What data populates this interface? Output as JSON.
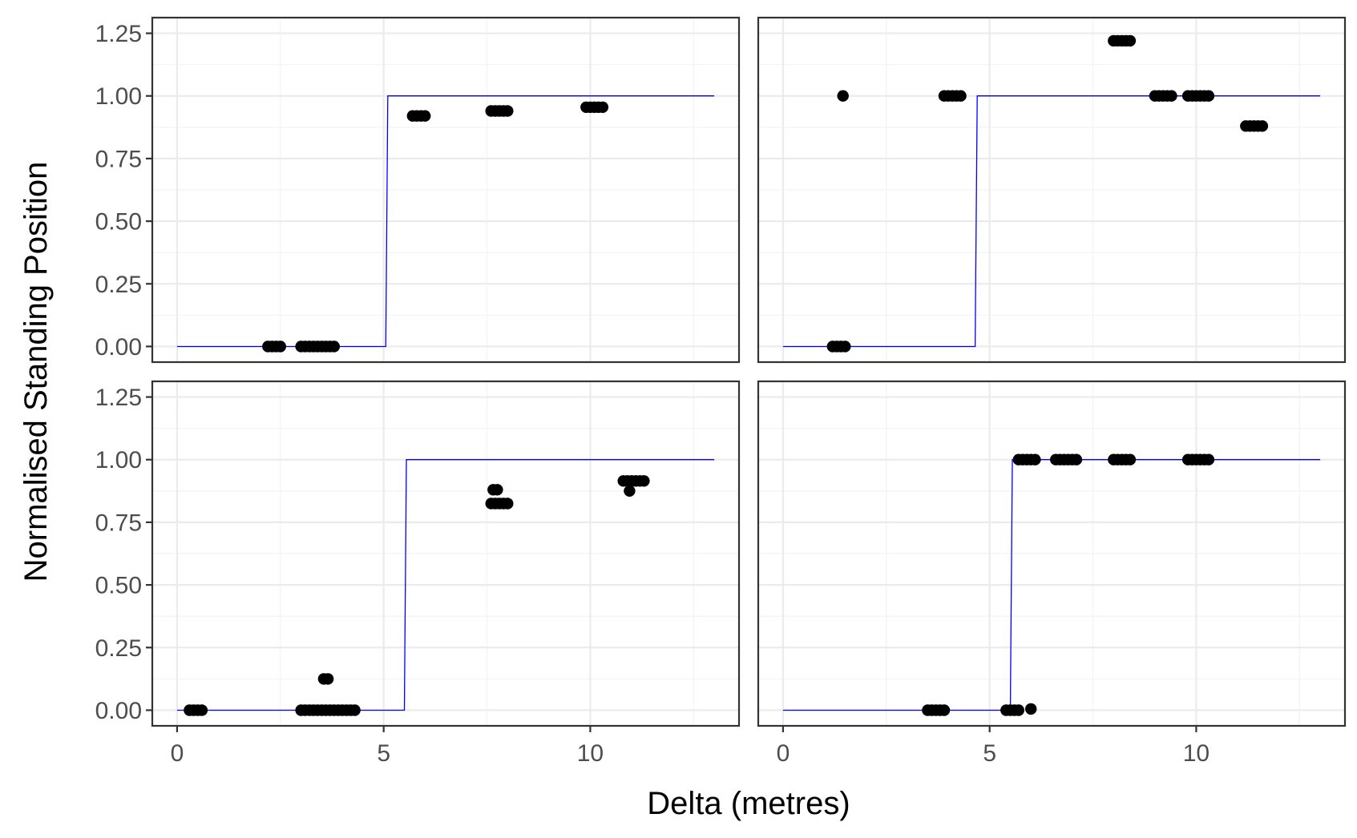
{
  "chart_data": {
    "type": "scatter",
    "layout": "2x2 facet grid, shared axes",
    "xlabel": "Delta (metres)",
    "ylabel": "Normalised Standing Position",
    "xlim": [
      -0.6,
      13.6
    ],
    "ylim": [
      -0.0625,
      1.3125
    ],
    "x_ticks": [
      {
        "value": 0,
        "label": "0"
      },
      {
        "value": 5,
        "label": "5"
      },
      {
        "value": 10,
        "label": "10"
      }
    ],
    "y_ticks": [
      {
        "value": 0,
        "label": "0.00"
      },
      {
        "value": 0.25,
        "label": "0.25"
      },
      {
        "value": 0.5,
        "label": "0.50"
      },
      {
        "value": 0.75,
        "label": "0.75"
      },
      {
        "value": 1.0,
        "label": "1.00"
      },
      {
        "value": 1.25,
        "label": "1.25"
      }
    ],
    "x_minor_ticks": [
      2.5,
      7.5,
      12.5
    ],
    "y_minor_ticks": [
      0.125,
      0.375,
      0.625,
      0.875,
      1.125
    ],
    "grid": true,
    "legend": "none",
    "colors": {
      "points": "#000000",
      "step_line": "#0000ff",
      "panel_border": "#333333",
      "grid_major": "#ebebeb",
      "grid_minor": "#f2f2f2",
      "tick_label": "#4d4d4d"
    },
    "panels": [
      {
        "id": "top-left",
        "step": {
          "x": [
            0,
            5.05,
            5.1,
            13
          ],
          "y": [
            0,
            0,
            1,
            1
          ]
        },
        "points": [
          {
            "x": 2.2,
            "y": 0
          },
          {
            "x": 2.3,
            "y": 0
          },
          {
            "x": 2.4,
            "y": 0
          },
          {
            "x": 2.5,
            "y": 0
          },
          {
            "x": 3.0,
            "y": 0
          },
          {
            "x": 3.1,
            "y": 0
          },
          {
            "x": 3.2,
            "y": 0
          },
          {
            "x": 3.3,
            "y": 0
          },
          {
            "x": 3.4,
            "y": 0
          },
          {
            "x": 3.5,
            "y": 0
          },
          {
            "x": 3.6,
            "y": 0
          },
          {
            "x": 3.7,
            "y": 0
          },
          {
            "x": 3.8,
            "y": 0
          },
          {
            "x": 5.7,
            "y": 0.92
          },
          {
            "x": 5.8,
            "y": 0.92
          },
          {
            "x": 5.9,
            "y": 0.92
          },
          {
            "x": 6.0,
            "y": 0.92
          },
          {
            "x": 7.6,
            "y": 0.94
          },
          {
            "x": 7.7,
            "y": 0.94
          },
          {
            "x": 7.8,
            "y": 0.94
          },
          {
            "x": 7.9,
            "y": 0.94
          },
          {
            "x": 8.0,
            "y": 0.94
          },
          {
            "x": 9.9,
            "y": 0.955
          },
          {
            "x": 10.0,
            "y": 0.955
          },
          {
            "x": 10.1,
            "y": 0.955
          },
          {
            "x": 10.2,
            "y": 0.955
          },
          {
            "x": 10.3,
            "y": 0.955
          }
        ]
      },
      {
        "id": "top-right",
        "step": {
          "x": [
            0,
            4.65,
            4.7,
            13
          ],
          "y": [
            0,
            0,
            1,
            1
          ]
        },
        "points": [
          {
            "x": 1.2,
            "y": 0
          },
          {
            "x": 1.3,
            "y": 0
          },
          {
            "x": 1.4,
            "y": 0
          },
          {
            "x": 1.5,
            "y": 0
          },
          {
            "x": 1.45,
            "y": 1.0
          },
          {
            "x": 3.9,
            "y": 1.0
          },
          {
            "x": 4.0,
            "y": 1.0
          },
          {
            "x": 4.1,
            "y": 1.0
          },
          {
            "x": 4.2,
            "y": 1.0
          },
          {
            "x": 4.3,
            "y": 1.0
          },
          {
            "x": 8.0,
            "y": 1.22
          },
          {
            "x": 8.1,
            "y": 1.22
          },
          {
            "x": 8.2,
            "y": 1.22
          },
          {
            "x": 8.3,
            "y": 1.22
          },
          {
            "x": 8.4,
            "y": 1.22
          },
          {
            "x": 9.0,
            "y": 1.0
          },
          {
            "x": 9.1,
            "y": 1.0
          },
          {
            "x": 9.2,
            "y": 1.0
          },
          {
            "x": 9.3,
            "y": 1.0
          },
          {
            "x": 9.4,
            "y": 1.0
          },
          {
            "x": 9.8,
            "y": 1.0
          },
          {
            "x": 9.9,
            "y": 1.0
          },
          {
            "x": 10.0,
            "y": 1.0
          },
          {
            "x": 10.1,
            "y": 1.0
          },
          {
            "x": 10.2,
            "y": 1.0
          },
          {
            "x": 10.3,
            "y": 1.0
          },
          {
            "x": 11.2,
            "y": 0.88
          },
          {
            "x": 11.3,
            "y": 0.88
          },
          {
            "x": 11.4,
            "y": 0.88
          },
          {
            "x": 11.5,
            "y": 0.88
          },
          {
            "x": 11.6,
            "y": 0.88
          }
        ]
      },
      {
        "id": "bottom-left",
        "step": {
          "x": [
            0,
            5.5,
            5.55,
            13
          ],
          "y": [
            0,
            0,
            1,
            1
          ]
        },
        "points": [
          {
            "x": 0.3,
            "y": 0
          },
          {
            "x": 0.4,
            "y": 0
          },
          {
            "x": 0.5,
            "y": 0
          },
          {
            "x": 0.6,
            "y": 0
          },
          {
            "x": 3.0,
            "y": 0
          },
          {
            "x": 3.1,
            "y": 0
          },
          {
            "x": 3.2,
            "y": 0
          },
          {
            "x": 3.3,
            "y": 0
          },
          {
            "x": 3.4,
            "y": 0
          },
          {
            "x": 3.5,
            "y": 0
          },
          {
            "x": 3.6,
            "y": 0
          },
          {
            "x": 3.7,
            "y": 0
          },
          {
            "x": 3.8,
            "y": 0
          },
          {
            "x": 3.9,
            "y": 0
          },
          {
            "x": 4.0,
            "y": 0
          },
          {
            "x": 4.1,
            "y": 0
          },
          {
            "x": 4.2,
            "y": 0
          },
          {
            "x": 4.3,
            "y": 0
          },
          {
            "x": 3.55,
            "y": 0.125
          },
          {
            "x": 3.65,
            "y": 0.125
          },
          {
            "x": 7.65,
            "y": 0.88
          },
          {
            "x": 7.75,
            "y": 0.88
          },
          {
            "x": 7.6,
            "y": 0.825
          },
          {
            "x": 7.7,
            "y": 0.825
          },
          {
            "x": 7.8,
            "y": 0.825
          },
          {
            "x": 7.9,
            "y": 0.825
          },
          {
            "x": 8.0,
            "y": 0.825
          },
          {
            "x": 10.8,
            "y": 0.915
          },
          {
            "x": 10.9,
            "y": 0.915
          },
          {
            "x": 11.0,
            "y": 0.915
          },
          {
            "x": 11.1,
            "y": 0.915
          },
          {
            "x": 11.2,
            "y": 0.915
          },
          {
            "x": 11.3,
            "y": 0.915
          },
          {
            "x": 10.95,
            "y": 0.875
          }
        ]
      },
      {
        "id": "bottom-right",
        "step": {
          "x": [
            0,
            5.5,
            5.55,
            13
          ],
          "y": [
            0,
            0,
            1,
            1
          ]
        },
        "points": [
          {
            "x": 3.5,
            "y": 0
          },
          {
            "x": 3.6,
            "y": 0
          },
          {
            "x": 3.7,
            "y": 0
          },
          {
            "x": 3.8,
            "y": 0
          },
          {
            "x": 3.9,
            "y": 0
          },
          {
            "x": 5.4,
            "y": 0
          },
          {
            "x": 5.5,
            "y": 0
          },
          {
            "x": 5.6,
            "y": 0
          },
          {
            "x": 5.7,
            "y": 0
          },
          {
            "x": 6.0,
            "y": 0.005
          },
          {
            "x": 5.7,
            "y": 1.0
          },
          {
            "x": 5.8,
            "y": 1.0
          },
          {
            "x": 5.9,
            "y": 1.0
          },
          {
            "x": 6.0,
            "y": 1.0
          },
          {
            "x": 6.1,
            "y": 1.0
          },
          {
            "x": 6.6,
            "y": 1.0
          },
          {
            "x": 6.7,
            "y": 1.0
          },
          {
            "x": 6.8,
            "y": 1.0
          },
          {
            "x": 6.9,
            "y": 1.0
          },
          {
            "x": 7.0,
            "y": 1.0
          },
          {
            "x": 7.1,
            "y": 1.0
          },
          {
            "x": 8.0,
            "y": 1.0
          },
          {
            "x": 8.1,
            "y": 1.0
          },
          {
            "x": 8.2,
            "y": 1.0
          },
          {
            "x": 8.3,
            "y": 1.0
          },
          {
            "x": 8.4,
            "y": 1.0
          },
          {
            "x": 9.8,
            "y": 1.0
          },
          {
            "x": 9.9,
            "y": 1.0
          },
          {
            "x": 10.0,
            "y": 1.0
          },
          {
            "x": 10.1,
            "y": 1.0
          },
          {
            "x": 10.2,
            "y": 1.0
          },
          {
            "x": 10.3,
            "y": 1.0
          }
        ]
      }
    ]
  }
}
